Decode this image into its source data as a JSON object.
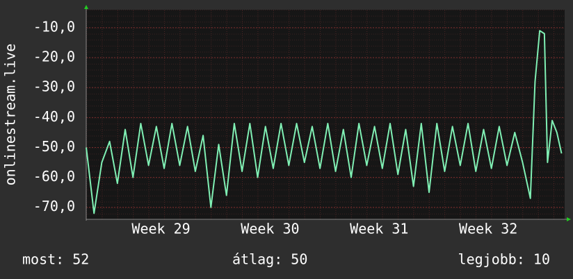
{
  "chart_data": {
    "type": "line",
    "ylabel": "onlinestream.live",
    "x": [
      0,
      0.5,
      1,
      1.5,
      2,
      2.5,
      3,
      3.5,
      4,
      4.5,
      5,
      5.5,
      6,
      6.5,
      7,
      7.5,
      8,
      8.5,
      9,
      9.5,
      10,
      10.5,
      11,
      11.5,
      12,
      12.5,
      13,
      13.5,
      14,
      14.5,
      15,
      15.5,
      16,
      16.5,
      17,
      17.5,
      18,
      18.5,
      19,
      19.5,
      20,
      20.5,
      21,
      21.5,
      22,
      22.5,
      23,
      23.5,
      24,
      24.5,
      25,
      25.5,
      26,
      26.5,
      27,
      27.5,
      28,
      28.5,
      28.8,
      29.1,
      29.4,
      29.6,
      29.9,
      30.2,
      30.5
    ],
    "values": [
      -50,
      -72,
      -55,
      -48,
      -62,
      -44,
      -60,
      -42,
      -56,
      -43,
      -57,
      -42,
      -56,
      -43,
      -58,
      -46,
      -70,
      -49,
      -66,
      -42,
      -58,
      -42,
      -60,
      -43,
      -57,
      -42,
      -56,
      -42,
      -55,
      -43,
      -57,
      -42,
      -58,
      -44,
      -60,
      -42,
      -56,
      -43,
      -57,
      -42,
      -59,
      -44,
      -63,
      -42,
      -65,
      -42,
      -58,
      -43,
      -56,
      -42,
      -58,
      -44,
      -57,
      -43,
      -56,
      -45,
      -55,
      -67,
      -28,
      -11,
      -12,
      -55,
      -41,
      -45,
      -52
    ],
    "color": "#80f0b4",
    "xlim": [
      0,
      30.7
    ],
    "xticks": [
      {
        "value": 4.8,
        "label": "Week 29"
      },
      {
        "value": 11.8,
        "label": "Week 30"
      },
      {
        "value": 18.8,
        "label": "Week 31"
      },
      {
        "value": 25.8,
        "label": "Week 32"
      }
    ],
    "ylim": [
      -74,
      -4
    ],
    "yticks": [
      {
        "value": -10,
        "label": "-10,0"
      },
      {
        "value": -20,
        "label": "-20,0"
      },
      {
        "value": -30,
        "label": "-30,0"
      },
      {
        "value": -40,
        "label": "-40,0"
      },
      {
        "value": -50,
        "label": "-50,0"
      },
      {
        "value": -60,
        "label": "-60,0"
      },
      {
        "value": -70,
        "label": "-70,0"
      }
    ],
    "grid": true,
    "stats": [
      "most: 52",
      "átlag: 50",
      "legjobb: 10"
    ]
  }
}
